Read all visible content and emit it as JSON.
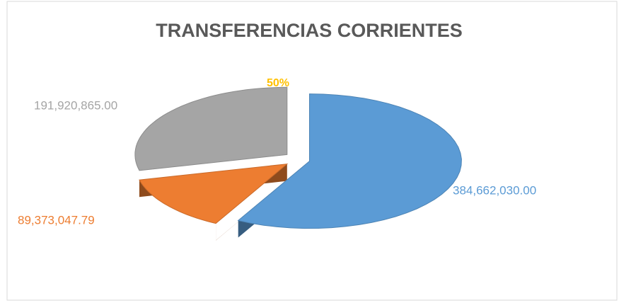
{
  "chart_data": {
    "type": "pie",
    "title": "TRANSFERENCIAS CORRIENTES",
    "annotation": "50%",
    "annotation_color": "#ffc000",
    "series": [
      {
        "values": [
          384662030.0,
          89373047.79,
          191920865.0
        ],
        "value_labels": [
          "384,662,030.00",
          "89,373,047.79",
          "191,920,865.00"
        ],
        "colors": [
          "#5b9bd5",
          "#ed7d31",
          "#a5a5a5"
        ]
      }
    ]
  }
}
